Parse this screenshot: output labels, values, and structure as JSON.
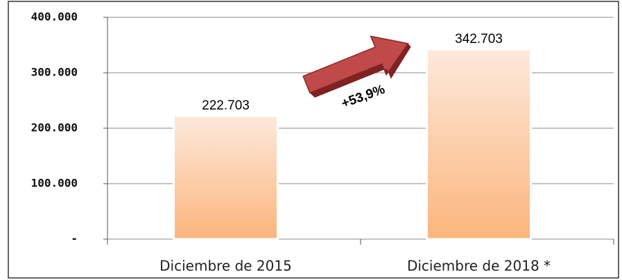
{
  "chart_data": {
    "type": "bar",
    "categories": [
      "Diciembre de 2015",
      "Diciembre de 2018 *"
    ],
    "values": [
      222703,
      342703
    ],
    "value_labels": [
      "222.703",
      "342.703"
    ],
    "ylim": [
      0,
      400000
    ],
    "yticks": [
      {
        "value": 0,
        "label": "-"
      },
      {
        "value": 100000,
        "label": "100.000"
      },
      {
        "value": 200000,
        "label": "200.000"
      },
      {
        "value": 300000,
        "label": "300.000"
      },
      {
        "value": 400000,
        "label": "400.000"
      }
    ],
    "grid": true,
    "annotation": "+53,9%"
  }
}
